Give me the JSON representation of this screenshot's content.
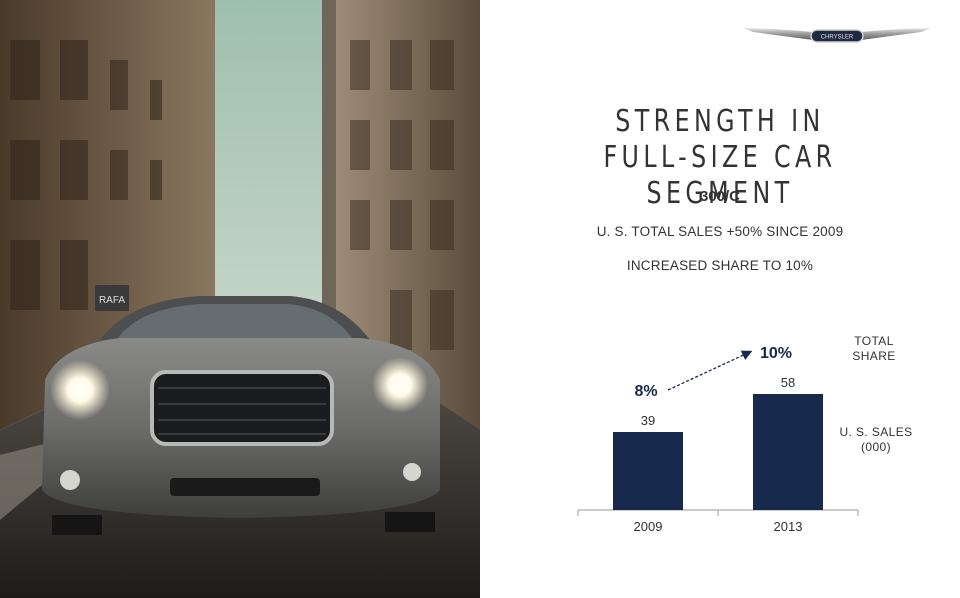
{
  "logo": {
    "text": "CHRYSLER",
    "icon": "chrysler-wings-logo"
  },
  "slide": {
    "title_line1": "STRENGTH IN",
    "title_line2": "FULL-SIZE CAR SEGMENT",
    "subtitle": "300/C",
    "bullets": [
      "U. S. TOTAL SALES +50% SINCE 2009",
      "INCREASED SHARE TO 10%"
    ]
  },
  "photo": {
    "storefront_sign": "RAFA"
  },
  "colors": {
    "bar": "#17294d",
    "text": "#333333",
    "axis": "#999999",
    "arrow": "#17294d"
  },
  "chart_data": {
    "type": "bar",
    "categories": [
      "2009",
      "2013"
    ],
    "values": [
      39,
      58
    ],
    "value_labels": [
      "39",
      "58"
    ],
    "bar_legend": "U. S. SALES\n(000)",
    "share": {
      "values": [
        "8%",
        "10%"
      ],
      "legend": "TOTAL\nSHARE"
    },
    "xlabel": "",
    "ylabel": "",
    "ylim": [
      0,
      70
    ],
    "grid": false
  }
}
